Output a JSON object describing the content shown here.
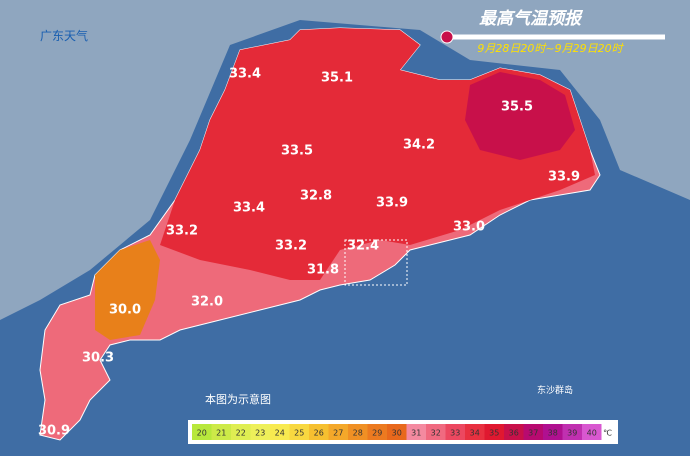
{
  "logo": "广东天气",
  "title": "最高气温预报",
  "subtitle": "9月28日20时~9月29日20时",
  "note": "本图为示意图",
  "island": "东沙群岛",
  "labels": [
    "33.4",
    "35.1",
    "35.5",
    "34.2",
    "33.5",
    "33.9",
    "32.8",
    "33.4",
    "33.9",
    "33.2",
    "33.0",
    "33.2",
    "32.4",
    "31.8",
    "30.0",
    "32.0",
    "30.3",
    "30.9"
  ],
  "legend": {
    "ticks": [
      20,
      21,
      22,
      23,
      24,
      25,
      26,
      27,
      28,
      29,
      30,
      31,
      32,
      33,
      34,
      35,
      36,
      37,
      38,
      39,
      40
    ],
    "colors": [
      "#b8e83c",
      "#cdea48",
      "#dfee52",
      "#eef05a",
      "#f8ea50",
      "#f8d840",
      "#f6c030",
      "#f4a82a",
      "#f09024",
      "#ec7a20",
      "#e8681c",
      "#f48aa0",
      "#f06a80",
      "#ec4860",
      "#e83040",
      "#e01830",
      "#c8104a",
      "#b80a70",
      "#b01090",
      "#c030b0",
      "#d858d0"
    ],
    "unit": "℃"
  }
}
